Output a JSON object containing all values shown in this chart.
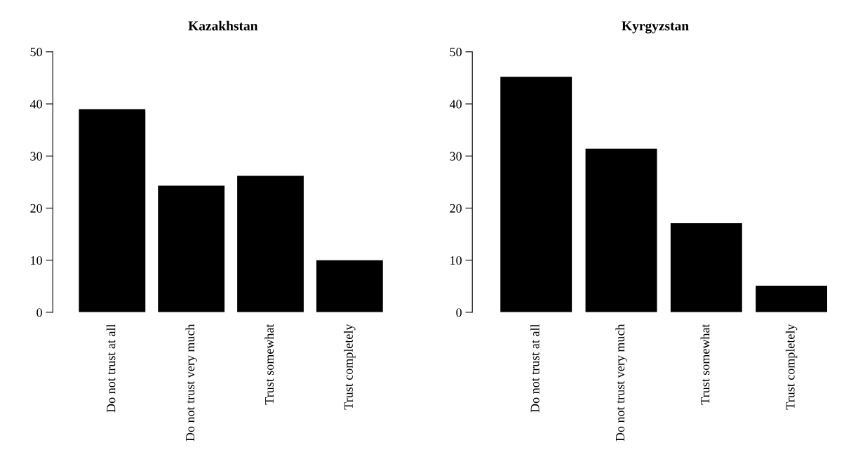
{
  "chart_data": [
    {
      "type": "bar",
      "title": "Kazakhstan",
      "categories": [
        "Do not trust at all",
        "Do not trust very much",
        "Trust somewhat",
        "Trust completely"
      ],
      "values": [
        39,
        24.3,
        26.2,
        10
      ],
      "color": "#000000",
      "ylim": [
        0,
        50
      ],
      "yticks": [
        0,
        10,
        20,
        30,
        40,
        50
      ],
      "grid": false
    },
    {
      "type": "bar",
      "title": "Kyrgyzstan",
      "categories": [
        "Do not trust at all",
        "Do not trust very much",
        "Trust somewhat",
        "Trust completely"
      ],
      "values": [
        45.2,
        31.4,
        17.1,
        5.1
      ],
      "color": "#000000",
      "ylim": [
        0,
        50
      ],
      "yticks": [
        0,
        10,
        20,
        30,
        40,
        50
      ],
      "grid": false
    }
  ]
}
